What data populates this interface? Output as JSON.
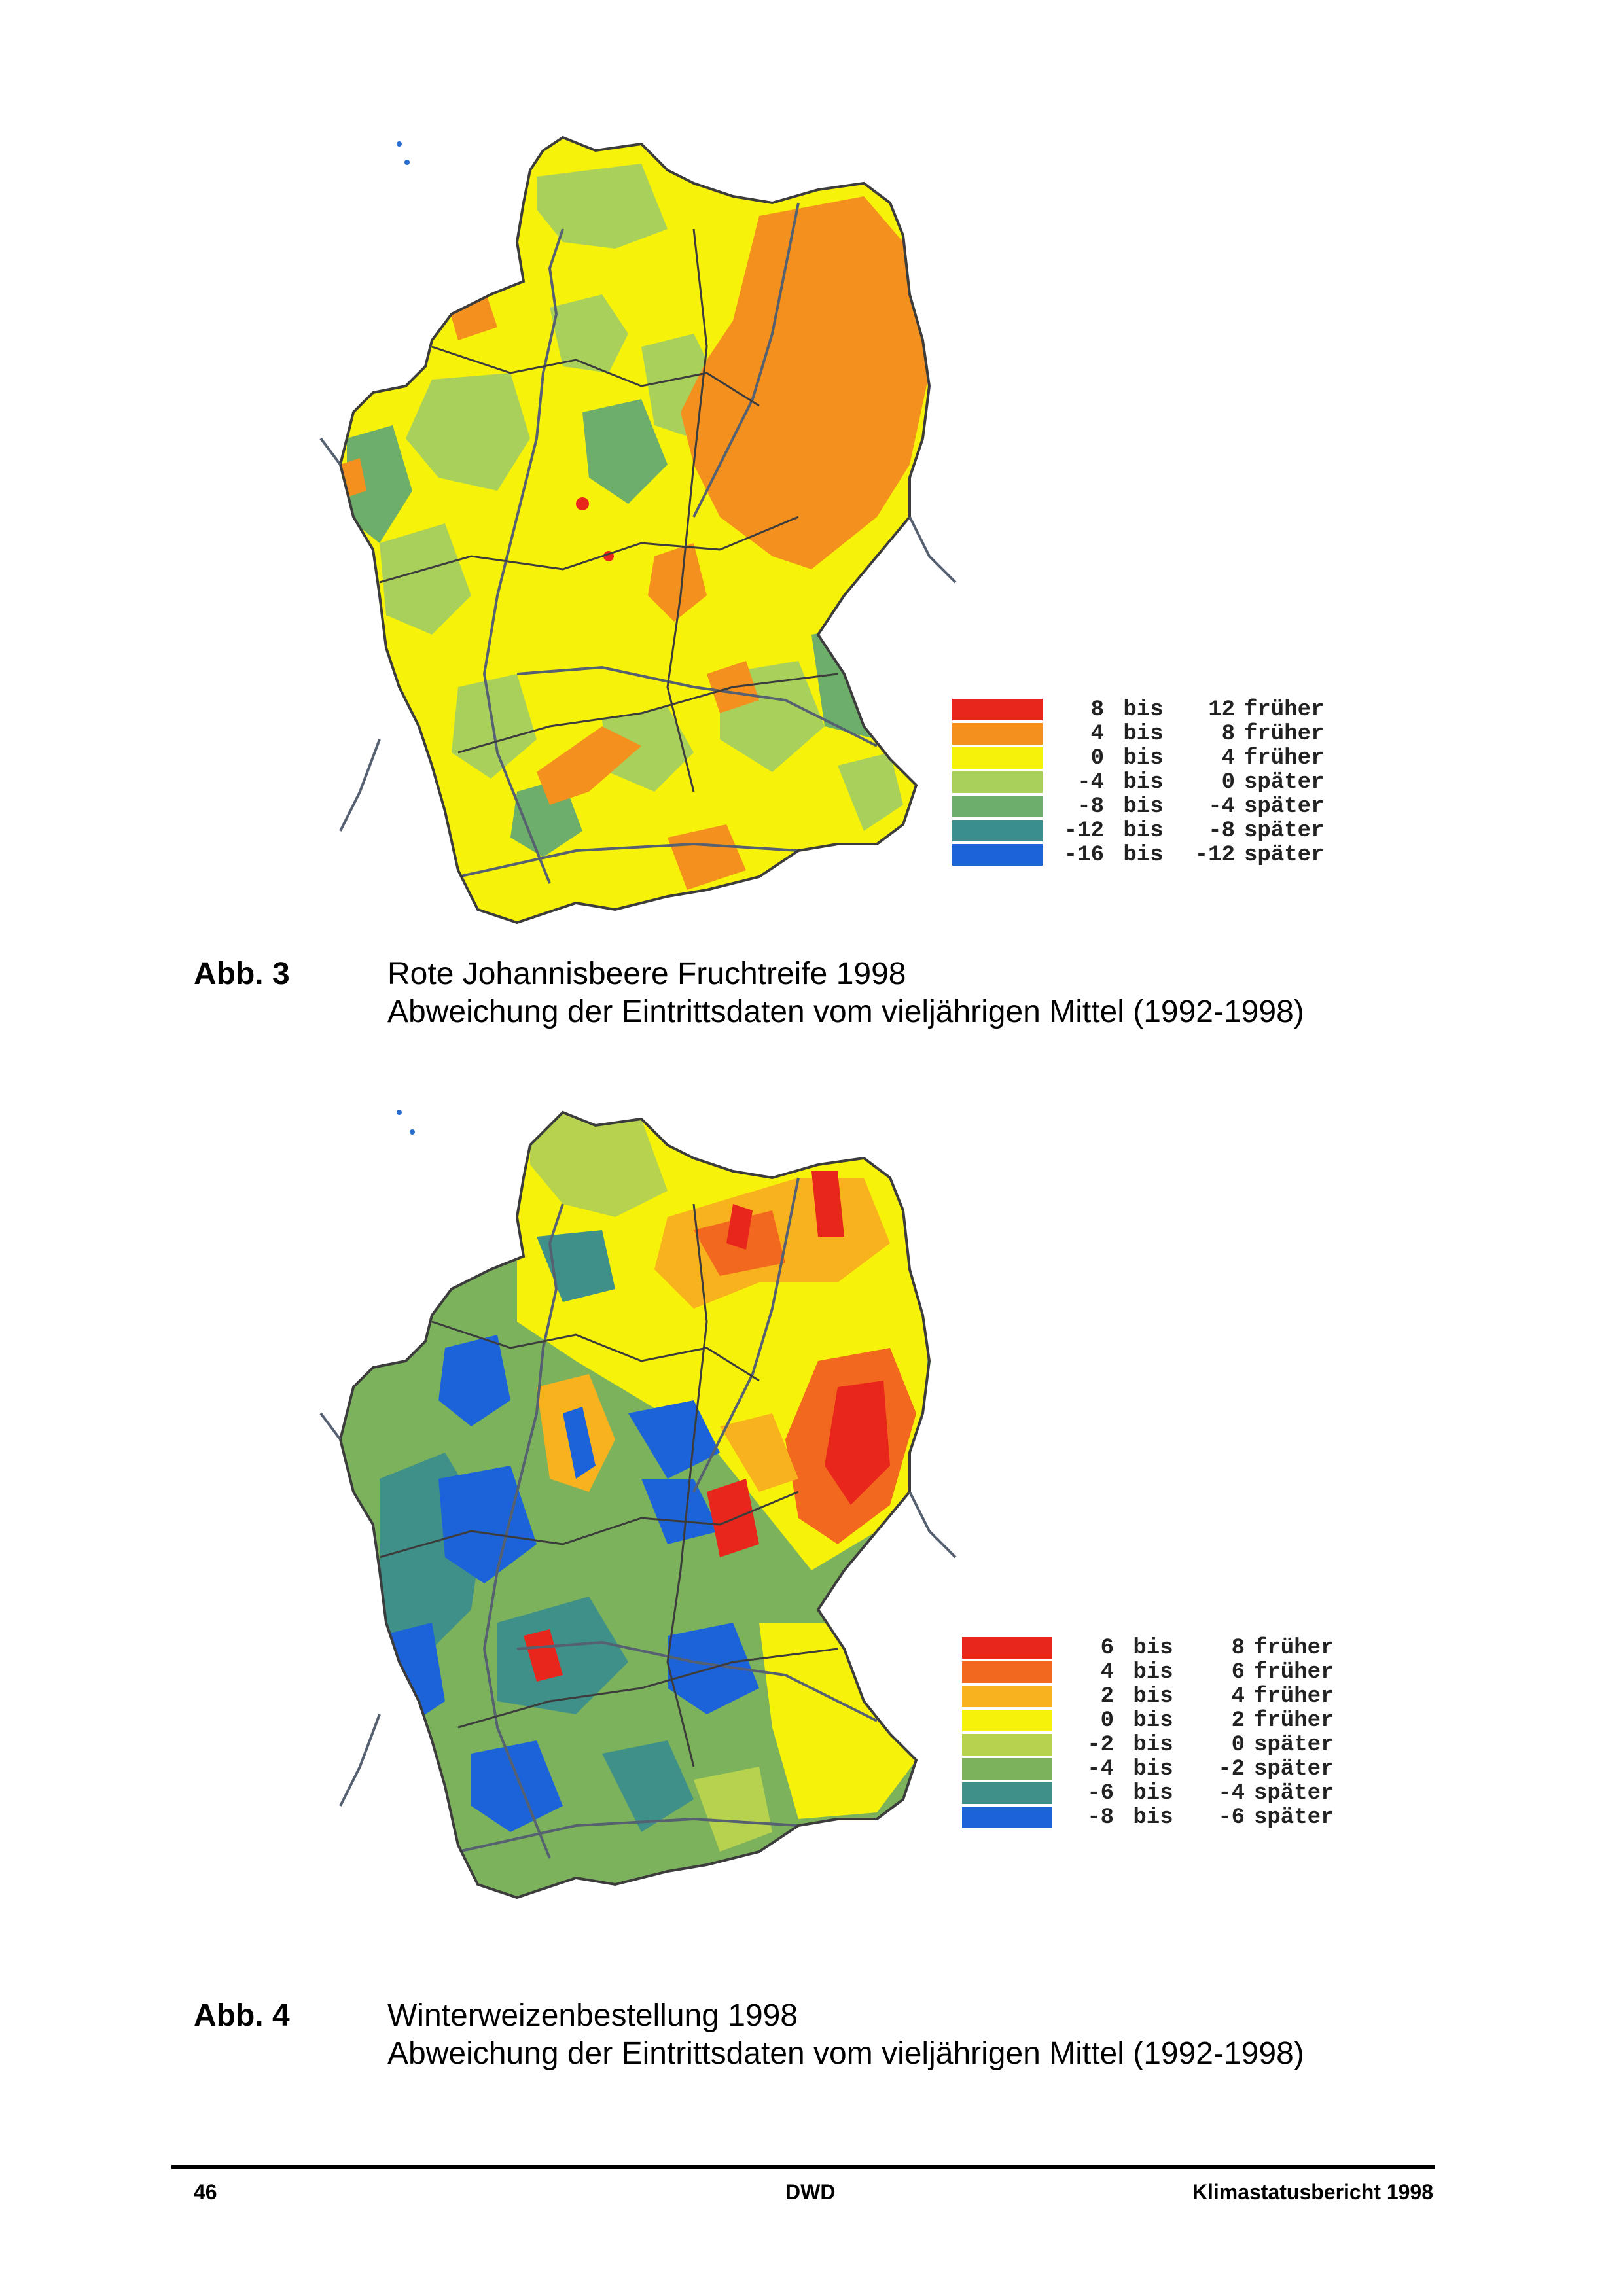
{
  "figures": [
    {
      "label": "Abb. 3",
      "title": "Rote Johannisbeere Fruchtreife 1998",
      "subtitle": "Abweichung der Eintrittsdaten vom vieljährigen Mittel (1992-1998)",
      "legend": [
        {
          "from": "8",
          "bis": "bis",
          "to": "12",
          "label": "früher",
          "color": "#e8261c"
        },
        {
          "from": "4",
          "bis": "bis",
          "to": "8",
          "label": "früher",
          "color": "#f4901e"
        },
        {
          "from": "0",
          "bis": "bis",
          "to": "4",
          "label": "früher",
          "color": "#f7f20a"
        },
        {
          "from": "-4",
          "bis": "bis",
          "to": "0",
          "label": "später",
          "color": "#a9d05a"
        },
        {
          "from": "-8",
          "bis": "bis",
          "to": "-4",
          "label": "später",
          "color": "#6cae6a"
        },
        {
          "from": "-12",
          "bis": "bis",
          "to": "-8",
          "label": "später",
          "color": "#3a8f8e"
        },
        {
          "from": "-16",
          "bis": "bis",
          "to": "-12",
          "label": "später",
          "color": "#1c62d8"
        }
      ],
      "colors": {
        "base": "#f7f20a",
        "warm": "#f4901e",
        "hot": "#e8261c",
        "cool": "#a9d05a",
        "cooler": "#6cae6a",
        "water": "#3a8f8e",
        "border": "#3c3c3c",
        "river": "#556070"
      }
    },
    {
      "label": "Abb. 4",
      "title": "Winterweizenbestellung 1998",
      "subtitle": "Abweichung der Eintrittsdaten vom vieljährigen Mittel (1992-1998)",
      "legend": [
        {
          "from": "6",
          "bis": "bis",
          "to": "8",
          "label": "früher",
          "color": "#e8261c"
        },
        {
          "from": "4",
          "bis": "bis",
          "to": "6",
          "label": "früher",
          "color": "#f2681e"
        },
        {
          "from": "2",
          "bis": "bis",
          "to": "4",
          "label": "früher",
          "color": "#f8b21e"
        },
        {
          "from": "0",
          "bis": "bis",
          "to": "2",
          "label": "früher",
          "color": "#f7f20a"
        },
        {
          "from": "-2",
          "bis": "bis",
          "to": "0",
          "label": "später",
          "color": "#b6d24e"
        },
        {
          "from": "-4",
          "bis": "bis",
          "to": "-2",
          "label": "später",
          "color": "#7db25c"
        },
        {
          "from": "-6",
          "bis": "bis",
          "to": "-4",
          "label": "später",
          "color": "#3e9088"
        },
        {
          "from": "-8",
          "bis": "bis",
          "to": "-6",
          "label": "später",
          "color": "#1c62d8"
        }
      ],
      "colors": {
        "base": "#7db25c",
        "warm": "#f8b21e",
        "hot": "#e8261c",
        "cool": "#3e9088",
        "cooler": "#1c62d8",
        "light": "#b6d24e",
        "yellow": "#f7f20a",
        "border": "#3c3c3c",
        "river": "#556070"
      }
    }
  ],
  "footer": {
    "page": "46",
    "center": "DWD",
    "right": "Klimastatusbericht 1998"
  }
}
